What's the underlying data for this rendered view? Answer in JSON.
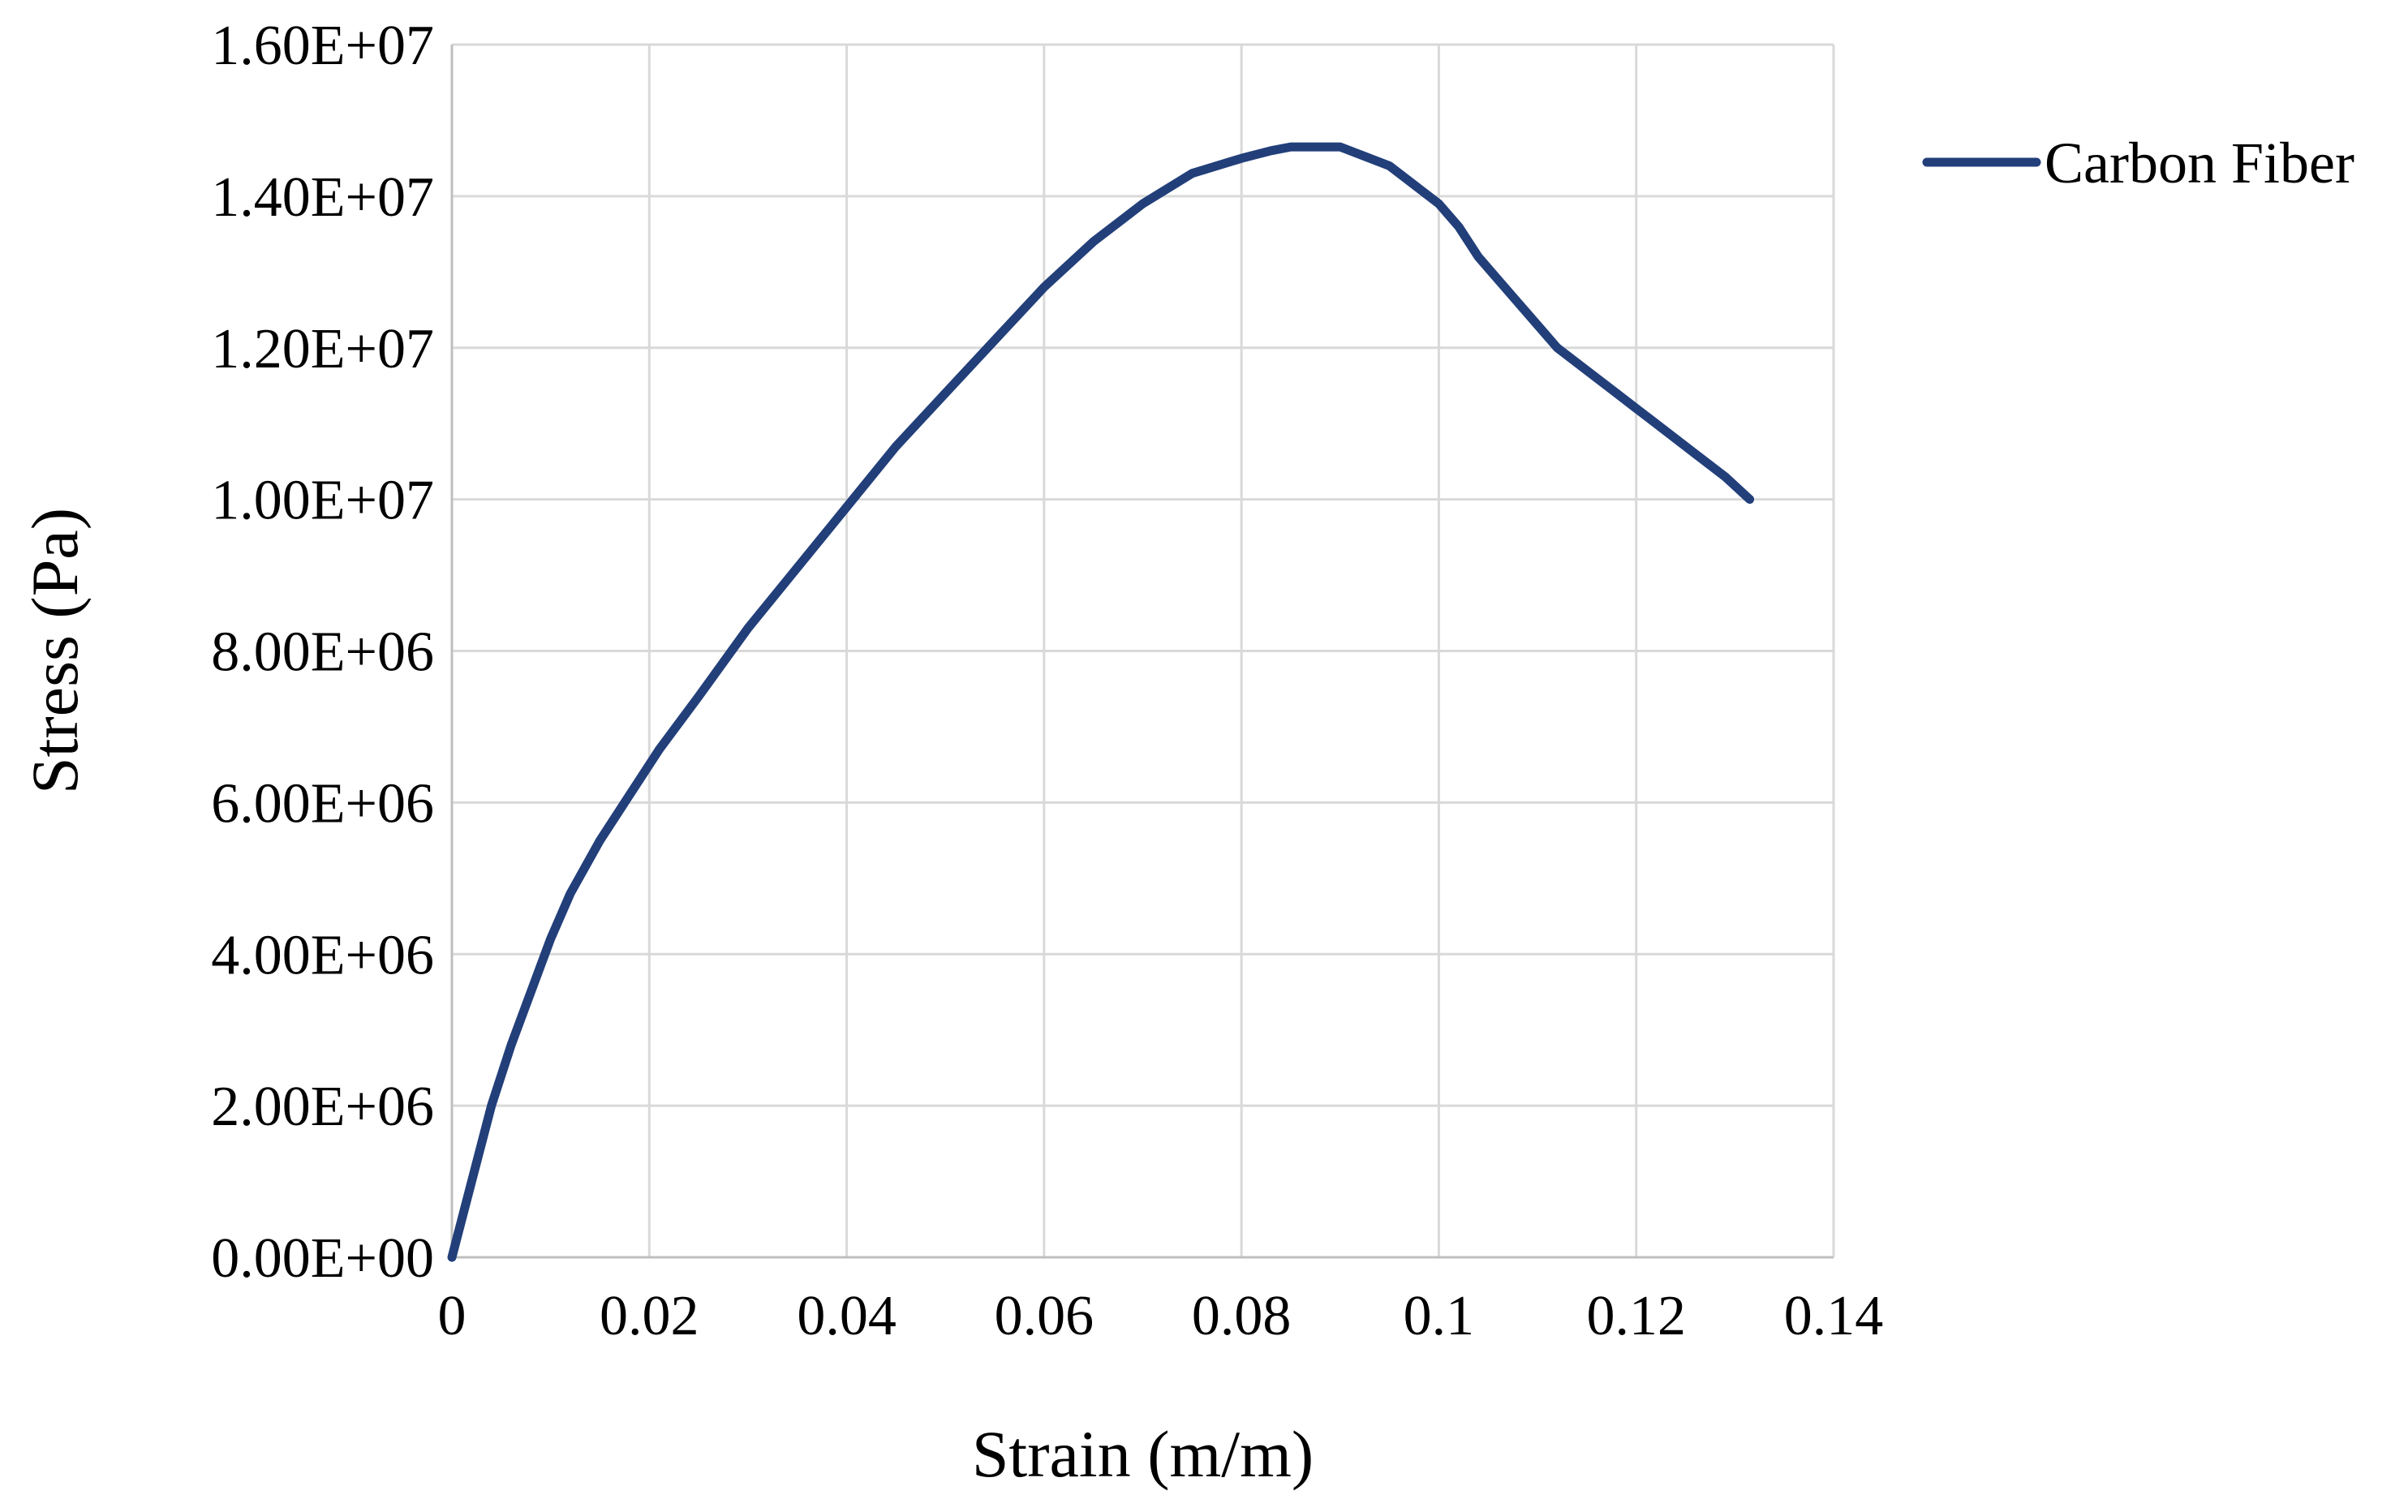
{
  "chart_data": {
    "type": "line",
    "title": "",
    "xlabel": "Strain (m/m)",
    "ylabel": "Stress (Pa)",
    "xlim": [
      0,
      0.14
    ],
    "ylim": [
      0,
      16000000
    ],
    "x_ticks": [
      0,
      0.02,
      0.04,
      0.06,
      0.08,
      0.1,
      0.12,
      0.14
    ],
    "x_tick_labels": [
      "0",
      "0.02",
      "0.04",
      "0.06",
      "0.08",
      "0.1",
      "0.12",
      "0.14"
    ],
    "y_ticks": [
      0,
      2000000,
      4000000,
      6000000,
      8000000,
      10000000,
      12000000,
      14000000,
      16000000
    ],
    "y_tick_labels": [
      "0.00E+00",
      "2.00E+06",
      "4.00E+06",
      "6.00E+06",
      "8.00E+06",
      "1.00E+07",
      "1.20E+07",
      "1.40E+07",
      "1.60E+07"
    ],
    "grid": true,
    "legend_position": "top-right",
    "series": [
      {
        "name": "Carbon Fiber",
        "color": "#223f7a",
        "x": [
          0,
          0.002,
          0.004,
          0.006,
          0.008,
          0.01,
          0.012,
          0.015,
          0.018,
          0.021,
          0.025,
          0.03,
          0.035,
          0.04,
          0.045,
          0.05,
          0.055,
          0.06,
          0.065,
          0.07,
          0.075,
          0.08,
          0.083,
          0.085,
          0.09,
          0.095,
          0.1,
          0.102,
          0.104,
          0.106,
          0.108,
          0.11,
          0.112,
          0.115,
          0.118,
          0.12,
          0.123,
          0.126,
          0.129,
          0.1315
        ],
        "y": [
          0,
          1000000,
          2000000,
          2800000,
          3500000,
          4200000,
          4800000,
          5500000,
          6100000,
          6700000,
          7400000,
          8300000,
          9100000,
          9900000,
          10700000,
          11400000,
          12100000,
          12800000,
          13400000,
          13900000,
          14300000,
          14500000,
          14600000,
          14650000,
          14650000,
          14400000,
          13900000,
          13600000,
          13200000,
          12900000,
          12600000,
          12300000,
          12000000,
          11700000,
          11400000,
          11200000,
          10900000,
          10600000,
          10300000,
          10000000
        ]
      }
    ]
  }
}
